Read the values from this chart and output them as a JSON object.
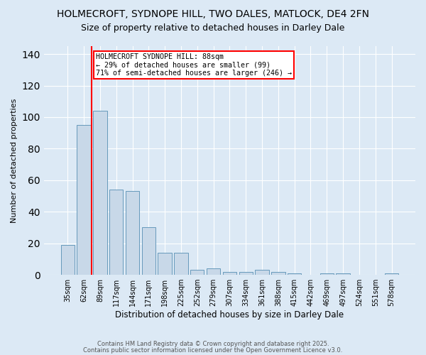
{
  "title1": "HOLMECROFT, SYDNOPE HILL, TWO DALES, MATLOCK, DE4 2FN",
  "title2": "Size of property relative to detached houses in Darley Dale",
  "xlabel": "Distribution of detached houses by size in Darley Dale",
  "ylabel": "Number of detached properties",
  "categories": [
    "35sqm",
    "62sqm",
    "89sqm",
    "117sqm",
    "144sqm",
    "171sqm",
    "198sqm",
    "225sqm",
    "252sqm",
    "279sqm",
    "307sqm",
    "334sqm",
    "361sqm",
    "388sqm",
    "415sqm",
    "442sqm",
    "469sqm",
    "497sqm",
    "524sqm",
    "551sqm",
    "578sqm"
  ],
  "values": [
    19,
    95,
    104,
    54,
    53,
    30,
    14,
    14,
    3,
    4,
    2,
    2,
    3,
    2,
    1,
    0,
    1,
    1,
    0,
    0,
    1
  ],
  "bar_color": "#c8d8e8",
  "bar_edge_color": "#6699bb",
  "background_color": "#dce9f5",
  "grid_color": "#ffffff",
  "red_line_x": 1.5,
  "annotation_box_text": "HOLMECROFT SYDNOPE HILL: 88sqm\n← 29% of detached houses are smaller (99)\n71% of semi-detached houses are larger (246) →",
  "footer1": "Contains HM Land Registry data © Crown copyright and database right 2025.",
  "footer2": "Contains public sector information licensed under the Open Government Licence v3.0.",
  "ylim": [
    0,
    145
  ],
  "yticks": [
    0,
    20,
    40,
    60,
    80,
    100,
    120,
    140
  ],
  "title1_fontsize": 10,
  "title2_fontsize": 9
}
